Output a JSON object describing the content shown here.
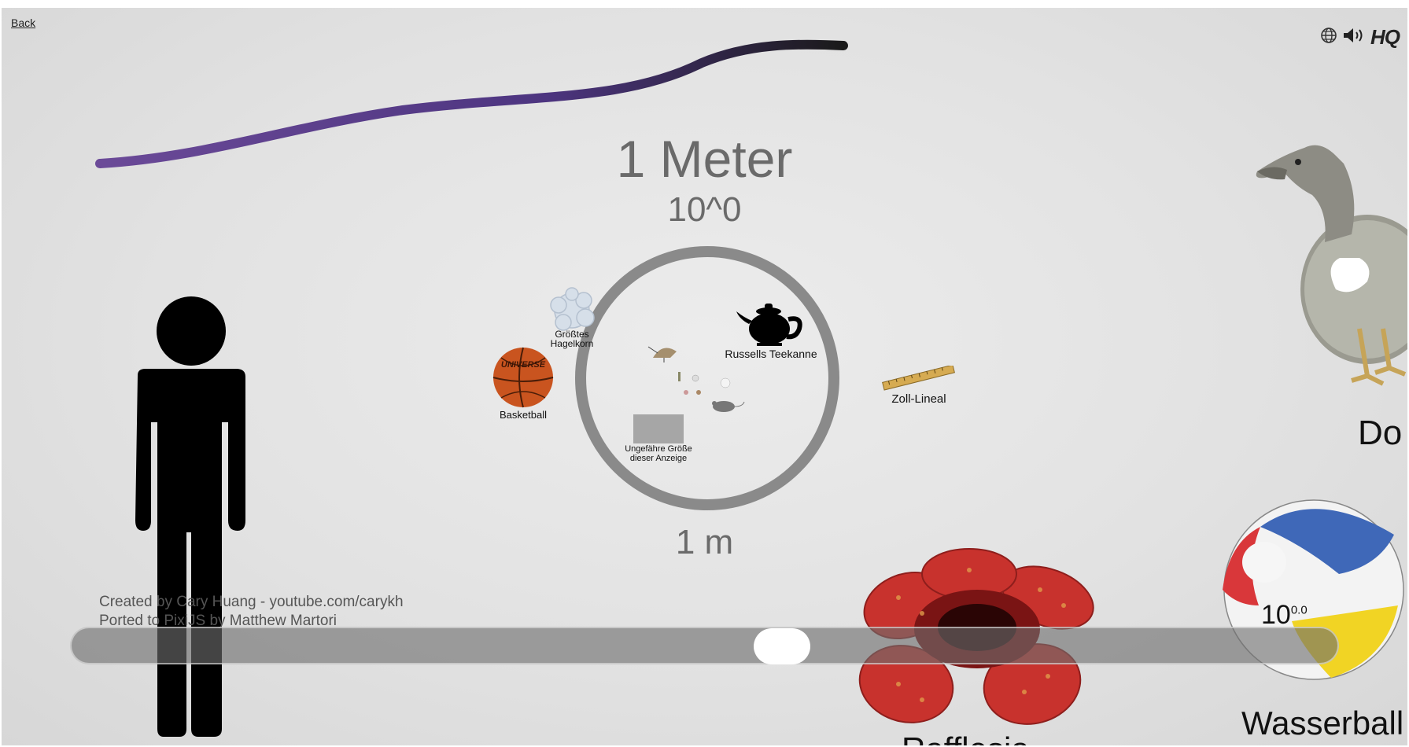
{
  "nav": {
    "back_label": "Back"
  },
  "toolbar": {
    "language_icon": "globe-icon",
    "sound_icon": "speaker-icon",
    "hq_label": "HQ"
  },
  "scale": {
    "name": "1 Meter",
    "power": "10^0",
    "unit": "1 m"
  },
  "objects": {
    "hailstone": {
      "line1": "Größtes",
      "line2": "Hagelkorn"
    },
    "basketball": "Basketball",
    "basketball_brand": "UNIVERSE",
    "teapot": "Russells Teekanne",
    "ruler": "Zoll-Lineal",
    "screen": {
      "line1": "Ungefähre Größe",
      "line2": "dieser Anzeige"
    },
    "dodo": "Do",
    "beachball": "Wasserball",
    "rafflesia": "Rafflesia"
  },
  "slider": {
    "value_base": "10",
    "value_exp": "0.0",
    "position_fraction": 0.54
  },
  "credits": {
    "line1": "Created by Cary Huang - youtube.com/carykh",
    "line2": "Ported to PixiJS by Matthew Martori"
  },
  "colors": {
    "ring": "#8a8a8a",
    "rope": "#5b3a86",
    "rafflesia": "#c8322d",
    "beachball_blue": "#3f68b8",
    "beachball_yellow": "#f1d424",
    "beachball_red": "#d9373a"
  }
}
